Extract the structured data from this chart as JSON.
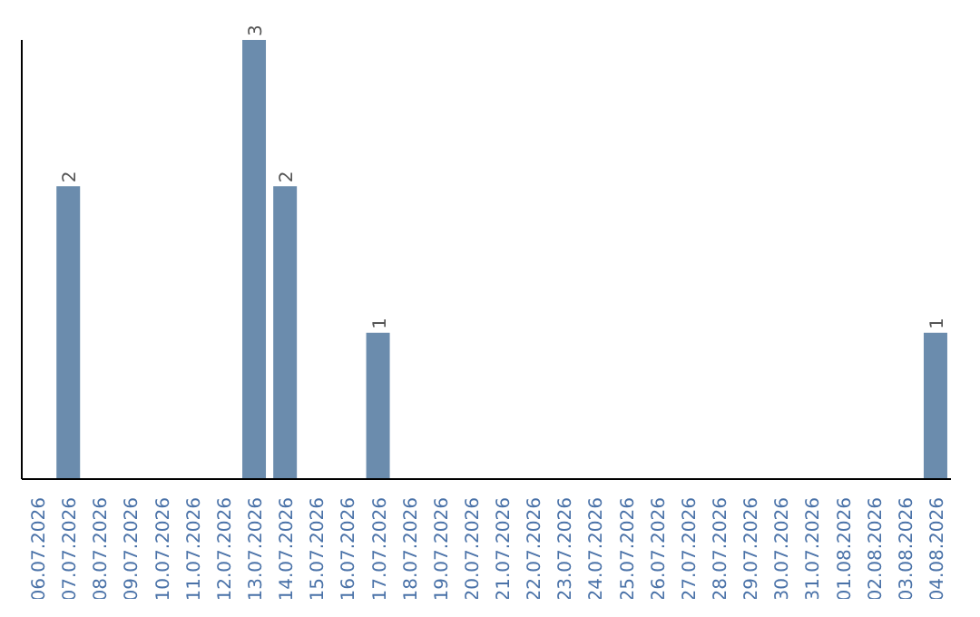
{
  "chart_data": {
    "type": "bar",
    "categories": [
      "06.07.2026",
      "07.07.2026",
      "08.07.2026",
      "09.07.2026",
      "10.07.2026",
      "11.07.2026",
      "12.07.2026",
      "13.07.2026",
      "14.07.2026",
      "15.07.2026",
      "16.07.2026",
      "17.07.2026",
      "18.07.2026",
      "19.07.2026",
      "20.07.2026",
      "21.07.2026",
      "22.07.2026",
      "23.07.2026",
      "24.07.2026",
      "25.07.2026",
      "26.07.2026",
      "27.07.2026",
      "28.07.2026",
      "29.07.2026",
      "30.07.2026",
      "31.07.2026",
      "01.08.2026",
      "02.08.2026",
      "03.08.2026",
      "04.08.2026"
    ],
    "values": [
      0,
      2,
      0,
      0,
      0,
      0,
      0,
      3,
      2,
      0,
      0,
      1,
      0,
      0,
      0,
      0,
      0,
      0,
      0,
      0,
      0,
      0,
      0,
      0,
      0,
      0,
      0,
      0,
      0,
      1
    ],
    "value_labels": [
      null,
      "2",
      null,
      null,
      null,
      null,
      null,
      "3",
      "2",
      null,
      null,
      "1",
      null,
      null,
      null,
      null,
      null,
      null,
      null,
      null,
      null,
      null,
      null,
      null,
      null,
      null,
      null,
      null,
      null,
      "1"
    ],
    "color": "#6b8cad",
    "tick_labels": "x",
    "grid": false
  }
}
